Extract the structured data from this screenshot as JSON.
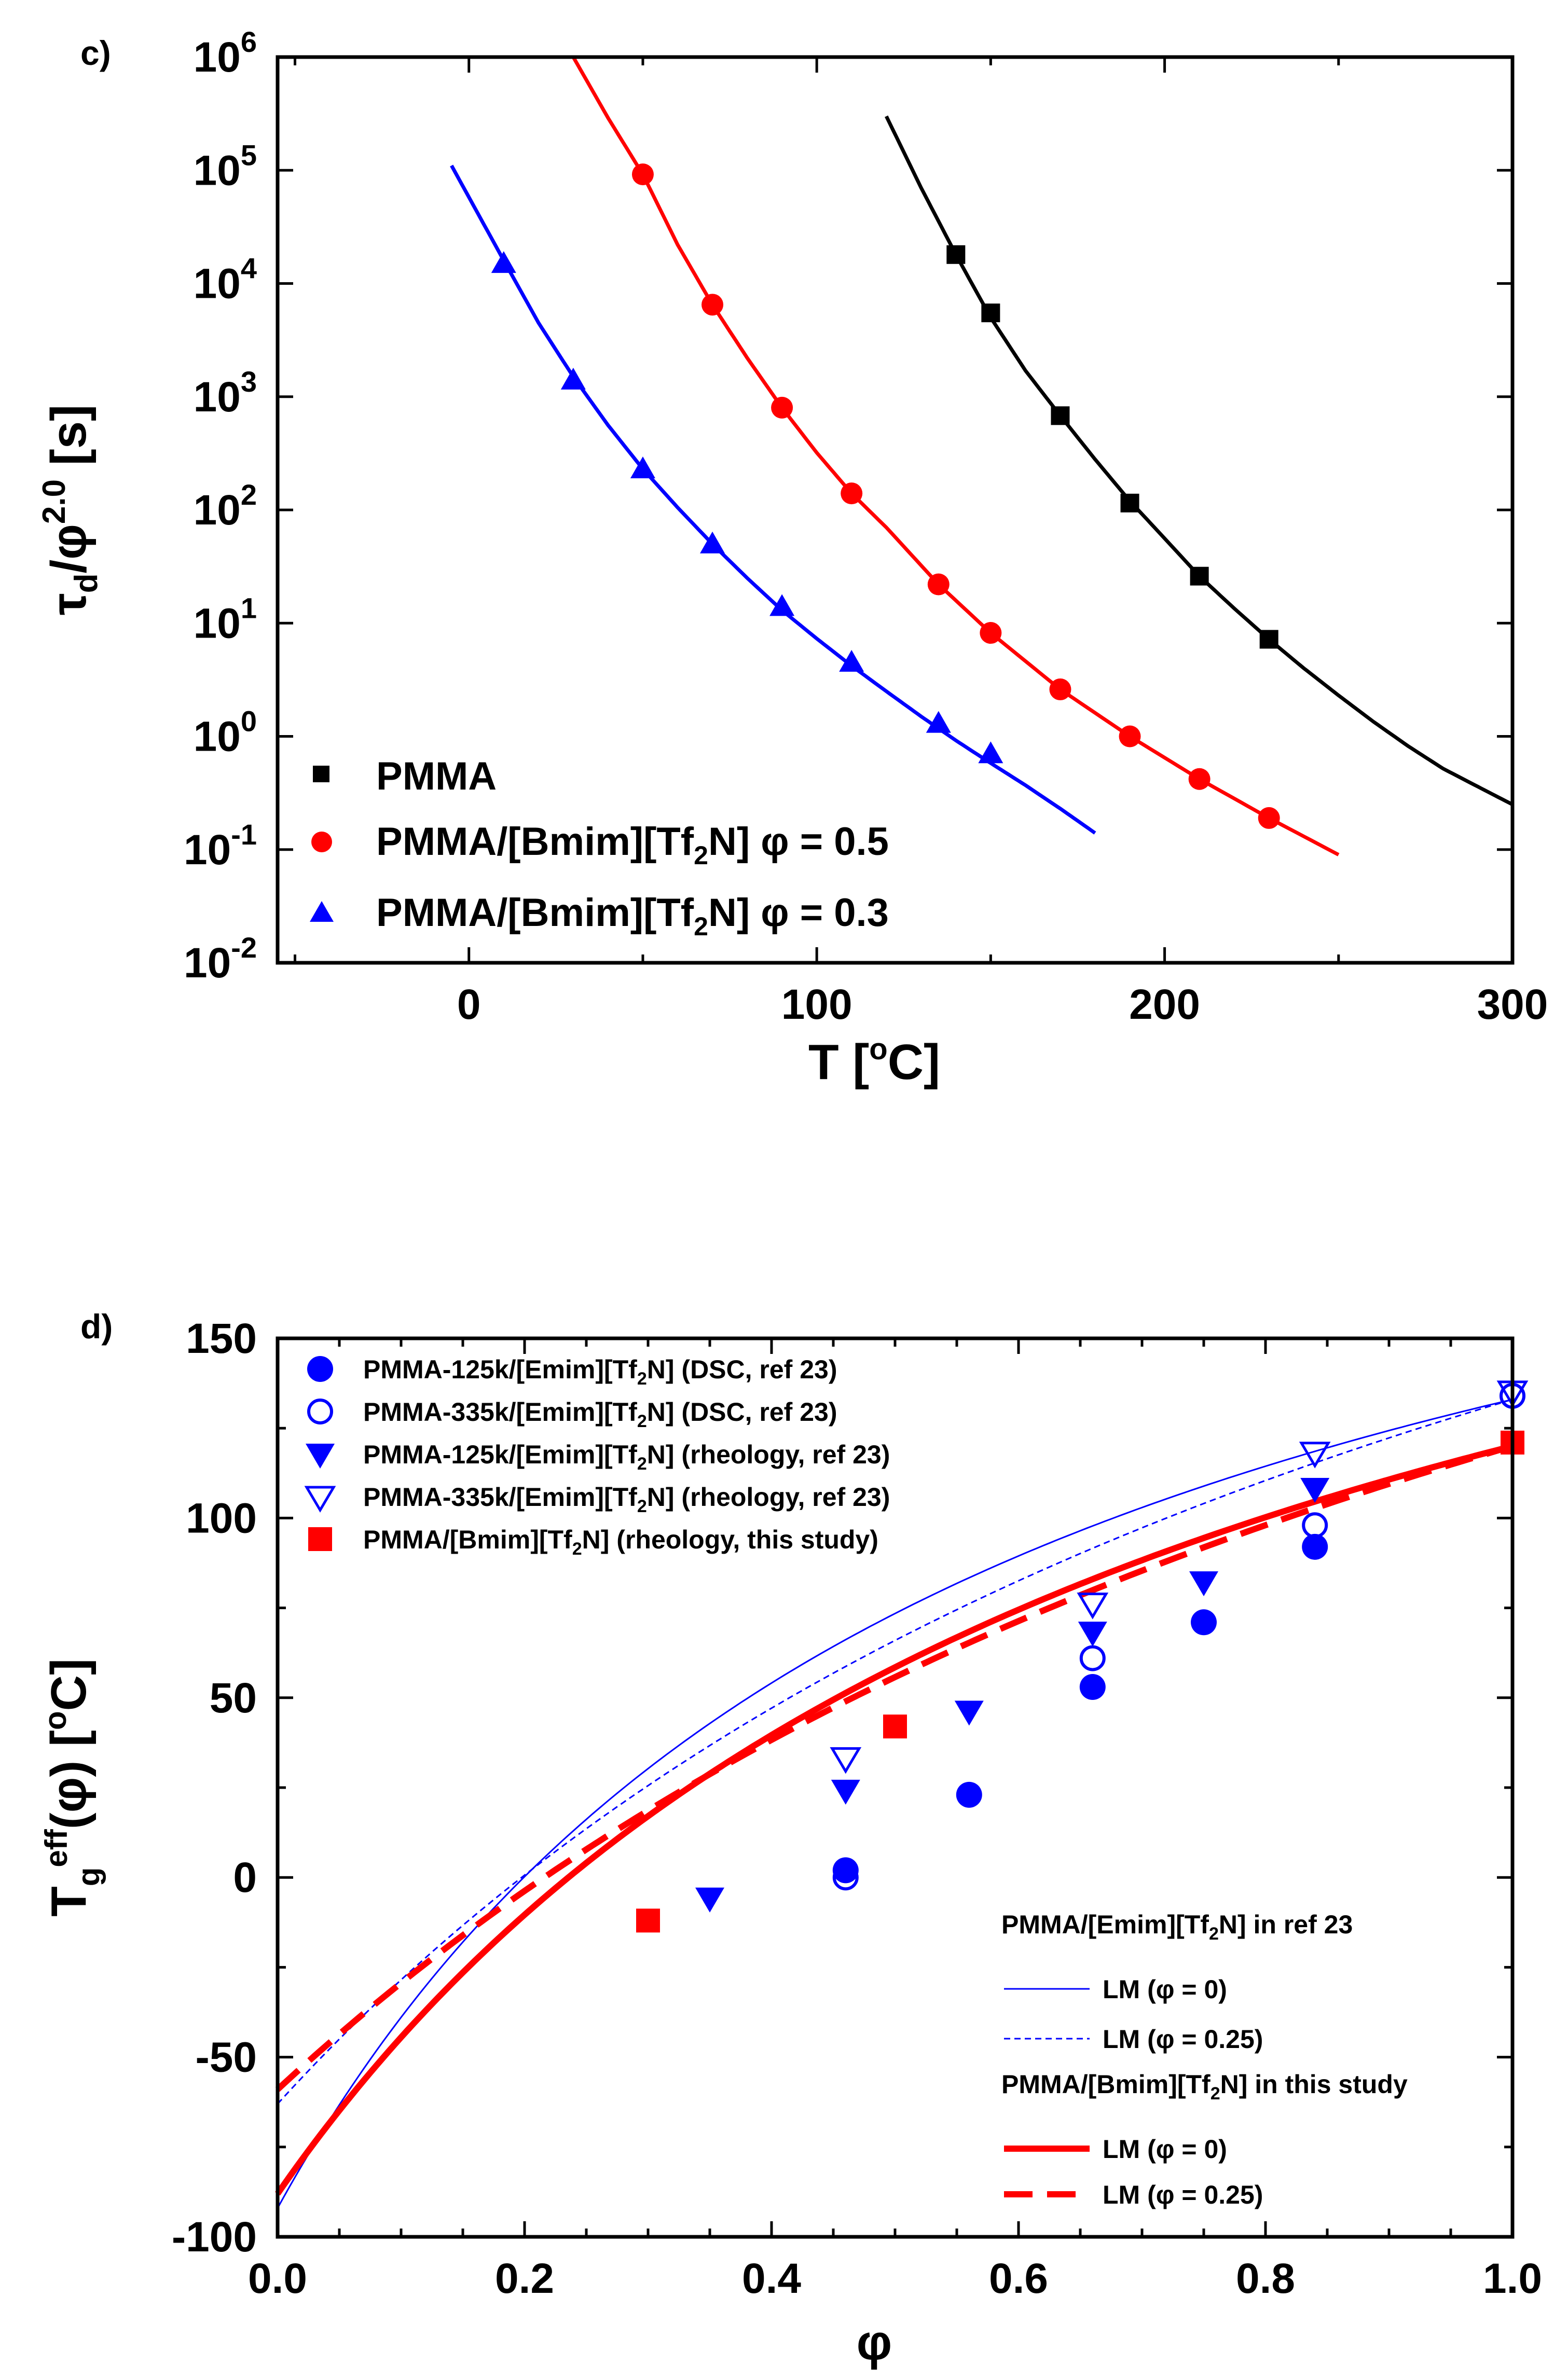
{
  "chart_data": [
    {
      "panel_label": "c)",
      "type": "scatter",
      "yscale": "log",
      "xlabel": "T [°C]",
      "ylabel": "τd/φ^2.0 [s]",
      "xlim": [
        -55,
        300
      ],
      "ylim": [
        0.01,
        1000000
      ],
      "xticks": [
        {
          "v": 0,
          "label": "0"
        },
        {
          "v": 100,
          "label": "100"
        },
        {
          "v": 200,
          "label": "200"
        },
        {
          "v": 300,
          "label": "300"
        }
      ],
      "yticks": [
        {
          "exp": -2,
          "base": "10",
          "sup": "-2"
        },
        {
          "exp": -1,
          "base": "10",
          "sup": "-1"
        },
        {
          "exp": 0,
          "base": "10",
          "sup": "0"
        },
        {
          "exp": 1,
          "base": "10",
          "sup": "1"
        },
        {
          "exp": 2,
          "base": "10",
          "sup": "2"
        },
        {
          "exp": 3,
          "base": "10",
          "sup": "3"
        },
        {
          "exp": 4,
          "base": "10",
          "sup": "4"
        },
        {
          "exp": 5,
          "base": "10",
          "sup": "5"
        },
        {
          "exp": 6,
          "base": "10",
          "sup": "6"
        }
      ],
      "legend": {
        "placement": "bottom-left"
      },
      "series": [
        {
          "name": "PMMA",
          "color": "#000000",
          "marker": "square",
          "x": [
            140,
            150,
            170,
            190,
            210,
            230
          ],
          "y": [
            18000,
            5500,
            680,
            115,
            26,
            7.2
          ],
          "fit_curve": {
            "x": [
              120,
              130,
              140,
              150,
              160,
              170,
              180,
              190,
              200,
              210,
              220,
              230,
              240,
              250,
              260,
              270,
              280,
              290,
              300
            ],
            "y": [
              300000,
              70000,
              18000,
              5000,
              1700,
              680,
              280,
              120,
              56,
              26,
              13.5,
              7.2,
              4.0,
              2.3,
              1.35,
              0.82,
              0.52,
              0.36,
              0.25
            ]
          }
        },
        {
          "name": "PMMA/[Bmim][Tf2N] φ = 0.5",
          "color": "#ff0000",
          "marker": "circle",
          "x": [
            50,
            70,
            90,
            110,
            135,
            150,
            170,
            190,
            210,
            230
          ],
          "y": [
            92000,
            6500,
            800,
            140,
            22,
            8.2,
            2.6,
            1.0,
            0.42,
            0.19
          ],
          "fit_curve": {
            "x": [
              30,
              40,
              50,
              60,
              70,
              80,
              90,
              100,
              110,
              120,
              135,
              150,
              170,
              190,
              210,
              230,
              250
            ],
            "y": [
              1000000,
              290000,
              92000,
              22000,
              6500,
              2200,
              800,
              320,
              140,
              70,
              22,
              8.2,
              2.6,
              1.0,
              0.42,
              0.19,
              0.09
            ]
          }
        },
        {
          "name": "PMMA/[Bmim][Tf2N] φ = 0.3",
          "color": "#0000ff",
          "marker": "triangle",
          "x": [
            10,
            30,
            50,
            70,
            90,
            110,
            135,
            150
          ],
          "y": [
            15000,
            1400,
            230,
            50,
            14,
            4.5,
            1.3,
            0.7
          ],
          "fit_curve": {
            "x": [
              -5,
              10,
              20,
              30,
              40,
              50,
              60,
              70,
              80,
              90,
              100,
              110,
              120,
              130,
              140,
              150,
              160,
              170,
              180
            ],
            "y": [
              110000,
              16000,
              4500,
              1500,
              560,
              230,
              105,
              50,
              25,
              13,
              7.3,
              4.2,
              2.5,
              1.5,
              0.92,
              0.58,
              0.37,
              0.23,
              0.14
            ]
          }
        }
      ]
    },
    {
      "panel_label": "d)",
      "type": "scatter",
      "xlabel": "φ",
      "ylabel": "Tg eff(φ) [°C]",
      "xlim": [
        0,
        1
      ],
      "ylim": [
        -100,
        150
      ],
      "xticks": [
        {
          "v": 0.0,
          "label": "0.0"
        },
        {
          "v": 0.2,
          "label": "0.2"
        },
        {
          "v": 0.4,
          "label": "0.4"
        },
        {
          "v": 0.6,
          "label": "0.6"
        },
        {
          "v": 0.8,
          "label": "0.8"
        },
        {
          "v": 1.0,
          "label": "1.0"
        }
      ],
      "yticks": [
        {
          "v": -100,
          "label": "-100"
        },
        {
          "v": -50,
          "label": "-50"
        },
        {
          "v": 0,
          "label": "0"
        },
        {
          "v": 50,
          "label": "50"
        },
        {
          "v": 100,
          "label": "100"
        },
        {
          "v": 150,
          "label": "150"
        }
      ],
      "legend_top": {
        "placement": "top-left"
      },
      "legend_bottom": {
        "placement": "bottom-right",
        "group1_title": "PMMA/[Emim][Tf2N] in ref 23",
        "group2_title": "PMMA/[Bmim][Tf2N] in this study"
      },
      "series": [
        {
          "name": "PMMA-125k/[Emim][Tf2N]  (DSC, ref 23)",
          "color": "#0000ff",
          "marker": "circle-filled",
          "x": [
            0.46,
            0.56,
            0.66,
            0.75,
            0.84
          ],
          "y": [
            2,
            23,
            53,
            71,
            92
          ]
        },
        {
          "name": "PMMA-335k/[Emim][Tf2N] (DSC, ref 23)",
          "color": "#0000ff",
          "marker": "circle-open",
          "x": [
            0.46,
            0.66,
            0.84,
            1.0
          ],
          "y": [
            0,
            61,
            98,
            134
          ]
        },
        {
          "name": "PMMA-125k/[Emim][Tf2N] (rheology, ref 23)",
          "color": "#0000ff",
          "marker": "triangle-down-filled",
          "x": [
            0.35,
            0.46,
            0.56,
            0.66,
            0.75,
            0.84
          ],
          "y": [
            -6,
            24,
            46,
            68,
            82,
            108
          ]
        },
        {
          "name": "PMMA-335k/[Emim][Tf2N] (rheology, ref 23)",
          "color": "#0000ff",
          "marker": "triangle-down-open",
          "x": [
            0.46,
            0.66,
            0.84,
            1.0
          ],
          "y": [
            33,
            76,
            118,
            135
          ]
        },
        {
          "name": "PMMA/[Bmim][Tf2N] (rheology, this study)",
          "color": "#ff0000",
          "marker": "square-filled",
          "x": [
            0.3,
            0.5,
            1.0
          ],
          "y": [
            -12,
            42,
            121
          ]
        }
      ],
      "curves": [
        {
          "name": "LM (φ = 0)",
          "group": "PMMA/[Emim][Tf2N] in ref 23",
          "color": "#0000ff",
          "style": "thin-solid",
          "tg_poly": 133,
          "tg_diluent": -92,
          "K": 0.36
        },
        {
          "name": "LM (φ = 0.25)",
          "group": "PMMA/[Emim][Tf2N] in ref 23",
          "color": "#0000ff",
          "style": "thin-dashed",
          "tg_poly": 133,
          "tg_diluent": -63,
          "K": 0.52
        },
        {
          "name": "LM (φ = 0)",
          "group": "PMMA/[Bmim][Tf2N] in this study",
          "color": "#ff0000",
          "style": "thick-solid",
          "tg_poly": 120,
          "tg_diluent": -88,
          "K": 0.42
        },
        {
          "name": "LM (φ = 0.25)",
          "group": "PMMA/[Bmim][Tf2N] in this study",
          "color": "#ff0000",
          "style": "thick-dashed",
          "tg_poly": 120,
          "tg_diluent": -59,
          "K": 0.56
        }
      ]
    }
  ]
}
